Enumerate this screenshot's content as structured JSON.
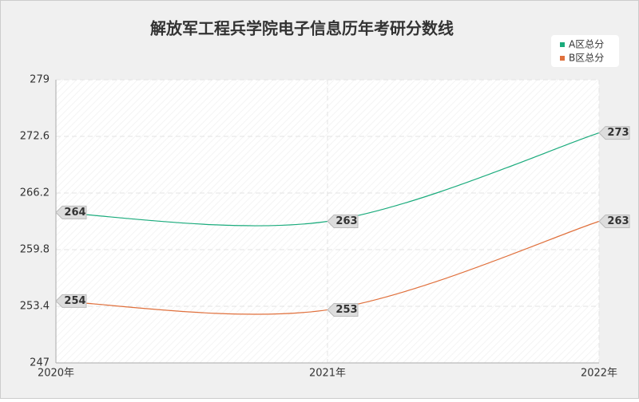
{
  "chart_data": {
    "type": "line",
    "title": "解放军工程兵学院电子信息历年考研分数线",
    "categories": [
      "2020年",
      "2021年",
      "2022年"
    ],
    "series": [
      {
        "name": "A区总分",
        "color": "#1aab7c",
        "values": [
          264,
          263,
          273
        ]
      },
      {
        "name": "B区总分",
        "color": "#e0703c",
        "values": [
          254,
          253,
          263
        ]
      }
    ],
    "ylim": [
      247,
      279
    ],
    "yticks": [
      247,
      253.4,
      259.8,
      266.2,
      272.6,
      279
    ],
    "grid": true,
    "legend": "top-right",
    "smooth": true
  }
}
